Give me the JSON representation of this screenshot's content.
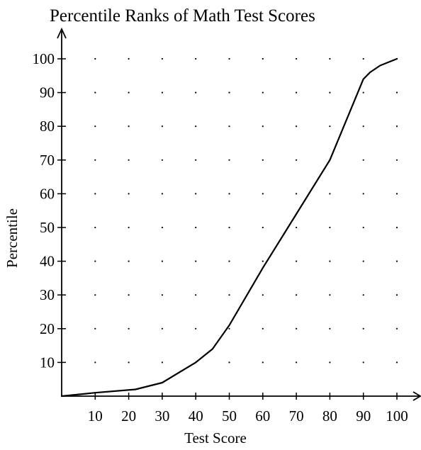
{
  "chart_data": {
    "type": "line",
    "title": "Percentile Ranks of Math Test Scores",
    "xlabel": "Test Score",
    "ylabel": "Percentile",
    "xlim": [
      0,
      100
    ],
    "ylim": [
      0,
      100
    ],
    "xticks": [
      10,
      20,
      30,
      40,
      50,
      60,
      70,
      80,
      90,
      100
    ],
    "yticks": [
      10,
      20,
      30,
      40,
      50,
      60,
      70,
      80,
      90,
      100
    ],
    "grid": "dotted",
    "series": [
      {
        "x": [
          0,
          10,
          22,
          30,
          40,
          45,
          50,
          60,
          70,
          80,
          90,
          92,
          95,
          100
        ],
        "y": [
          0,
          1,
          2,
          4,
          10,
          14,
          21,
          38,
          54,
          70,
          94,
          96,
          98,
          100
        ]
      }
    ]
  }
}
